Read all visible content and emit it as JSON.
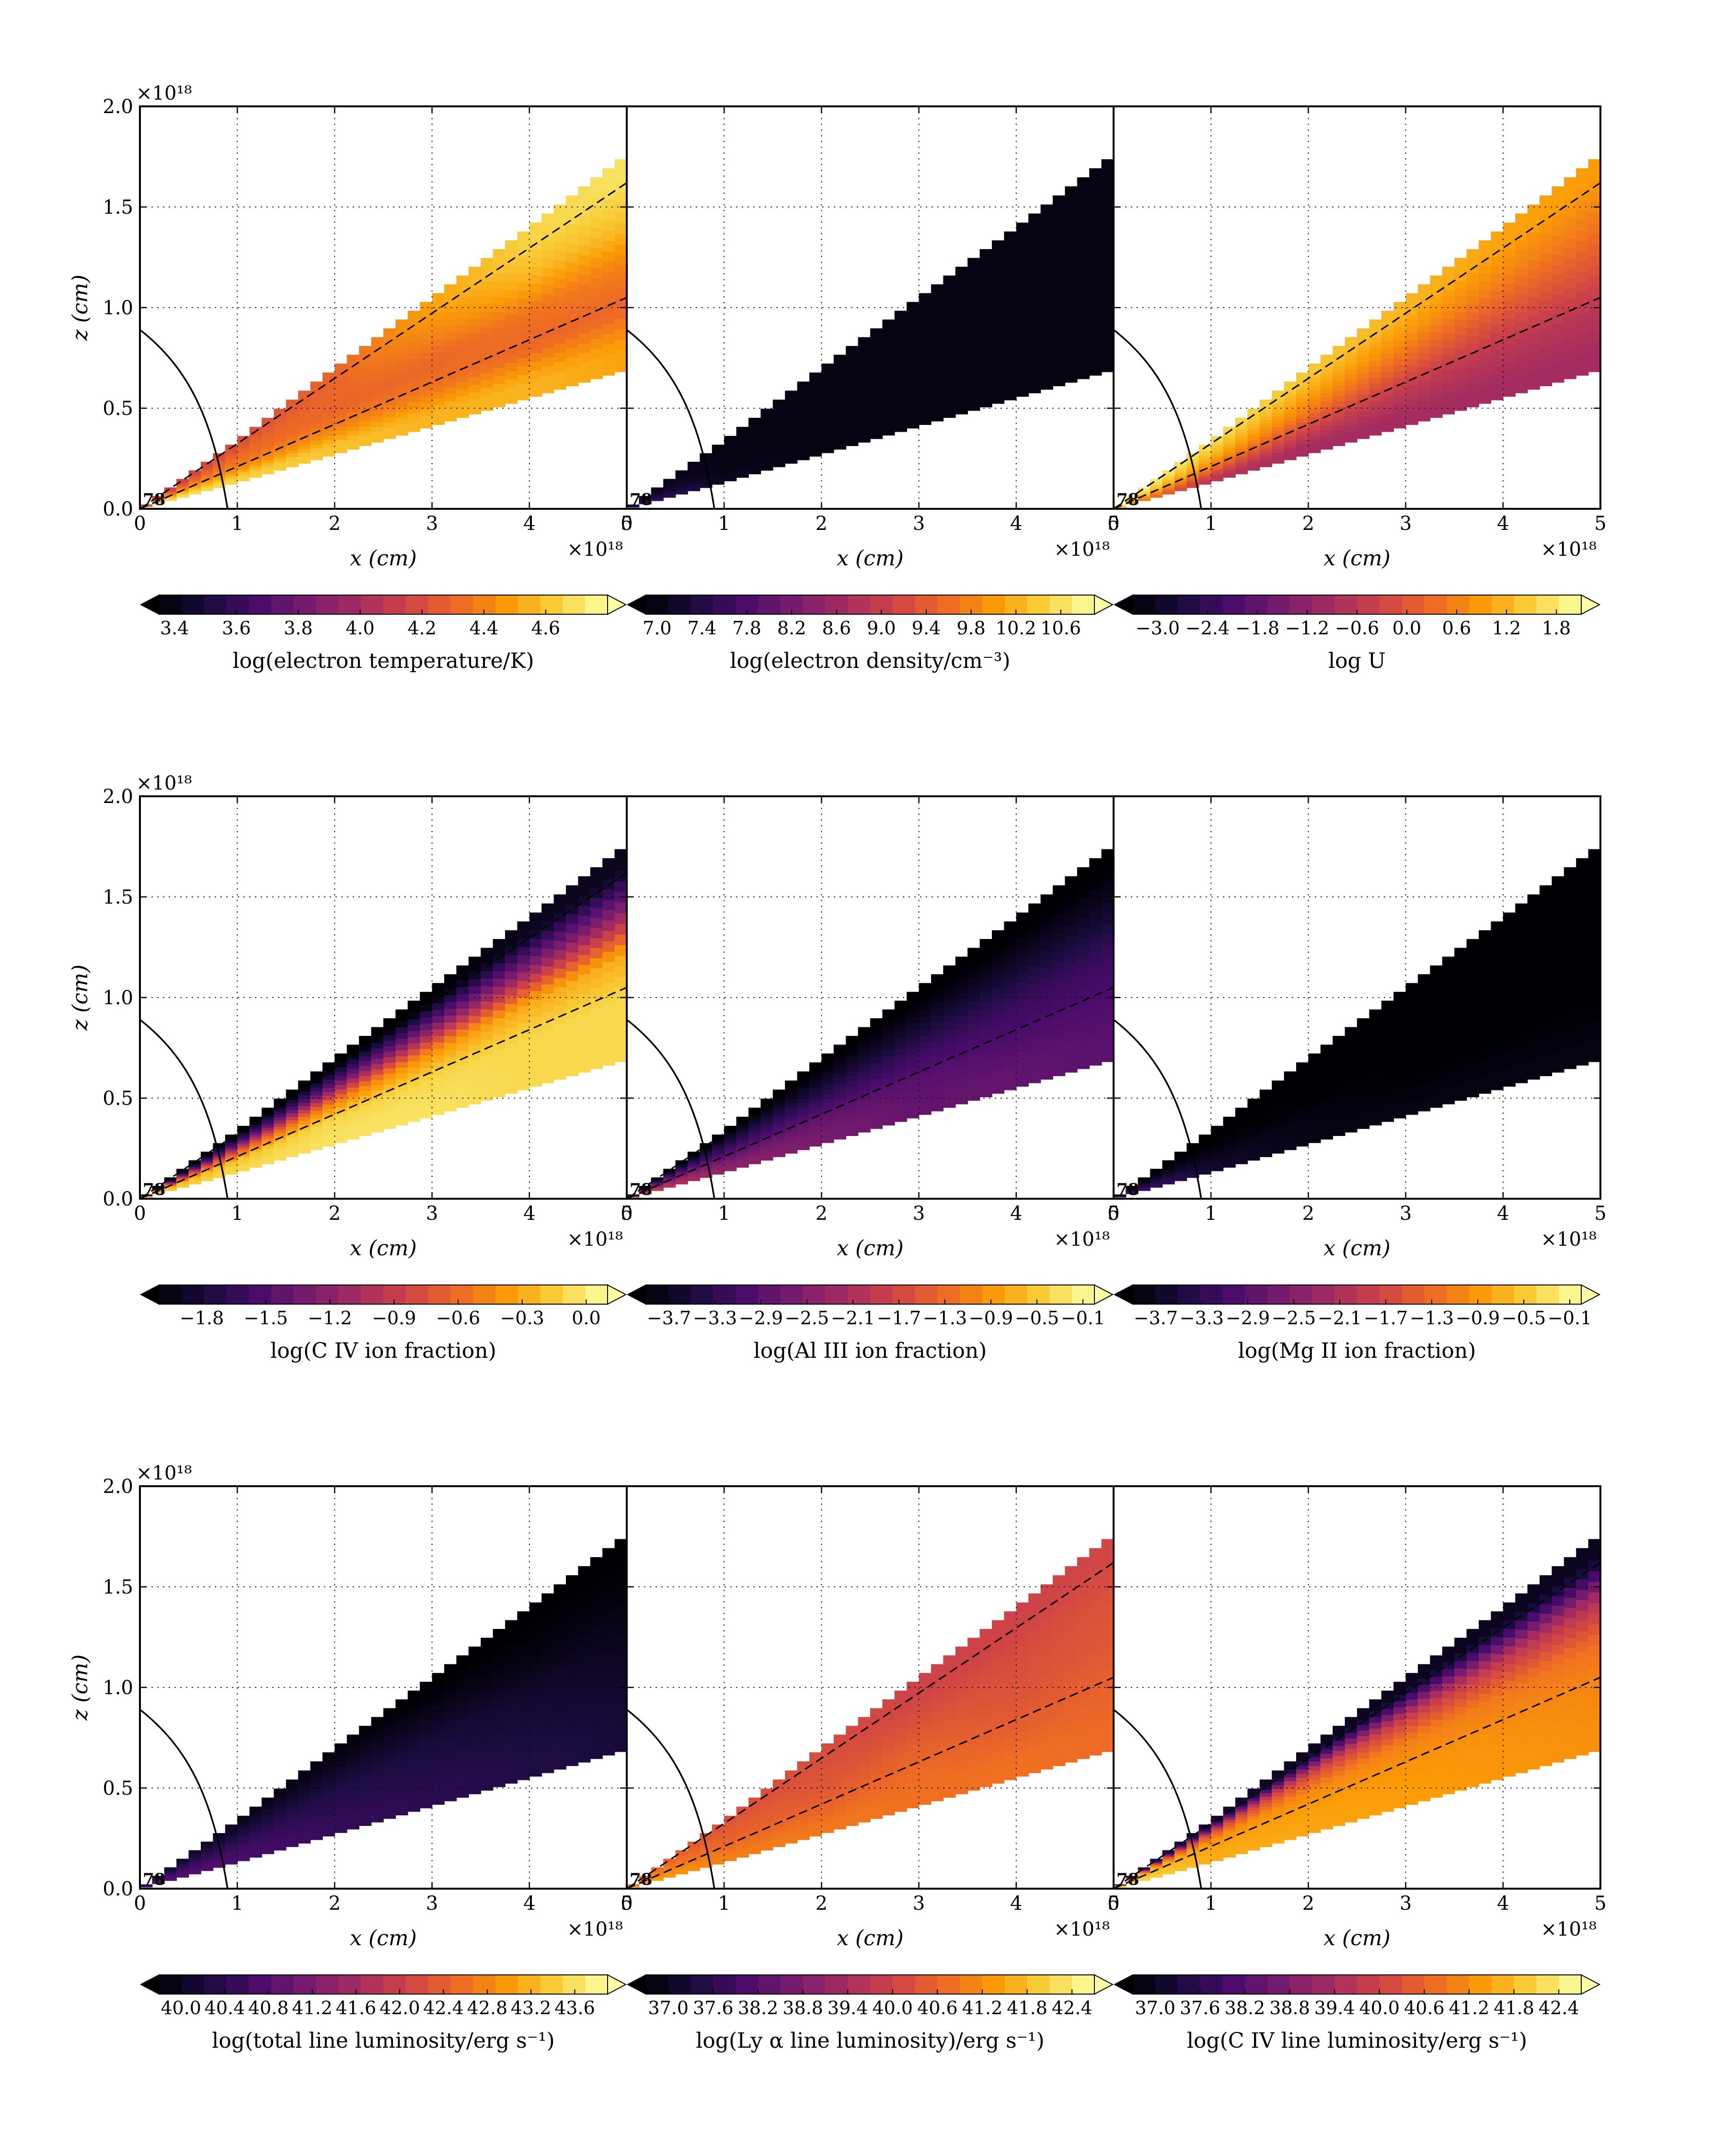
{
  "chart_data": {
    "type": "heatmap",
    "axis_labels": {
      "x": "x (cm)",
      "z": "z (cm)"
    },
    "x_tick_labels": [
      "0",
      "1",
      "2",
      "3",
      "4",
      "5"
    ],
    "z_tick_labels": [
      "0.0",
      "0.5",
      "1.0",
      "1.5",
      "2.0"
    ],
    "scale_label": "×10¹⁸",
    "xlim": [
      0,
      5
    ],
    "ylim": [
      0,
      2
    ],
    "grid": true,
    "colormap": [
      "#000004",
      "#1b0c41",
      "#4a0c6b",
      "#781c6d",
      "#a52c60",
      "#cf4446",
      "#ed6925",
      "#fb9b06",
      "#f7d13d",
      "#fcffa4"
    ],
    "corner_note": "78",
    "wind_wedge": {
      "x": [
        0,
        1,
        2,
        3,
        4,
        5
      ],
      "lower_edge_z": [
        0,
        0.13,
        0.27,
        0.41,
        0.55,
        0.69
      ],
      "upper_edge_z": [
        0,
        0.34,
        0.7,
        1.05,
        1.4,
        1.76
      ]
    },
    "streamlines": {
      "x": [
        0,
        5
      ],
      "steep_z": [
        0,
        1.62
      ],
      "shallow_z": [
        0,
        1.05
      ]
    },
    "boundary_curve": {
      "x": [
        0,
        0.5,
        0.75,
        0.9
      ],
      "z": [
        0.89,
        0.7,
        0.45,
        0
      ]
    },
    "panels": [
      {
        "colorbar_label": "log(electron temperature/K)",
        "colorbar_ticks": [
          "3.4",
          "3.6",
          "3.8",
          "4.0",
          "4.2",
          "4.4",
          "4.6"
        ],
        "cmin": 3.35,
        "cmax": 4.8,
        "has_upper_dash": true,
        "has_lower_dash": true,
        "grid_z": [
          0.1,
          0.3,
          0.5,
          0.7,
          0.9
        ],
        "values": [
          [
            4.7,
            4.65,
            4.6,
            4.55,
            4.55,
            4.5
          ],
          [
            4.6,
            4.45,
            4.4,
            4.35,
            4.3,
            4.3
          ],
          [
            4.4,
            4.35,
            4.3,
            4.3,
            4.35,
            4.4
          ],
          [
            4.2,
            4.3,
            4.3,
            4.4,
            4.55,
            4.6
          ],
          [
            4.1,
            4.2,
            4.3,
            4.5,
            4.65,
            4.7
          ]
        ]
      },
      {
        "colorbar_label": "log(electron density/cm⁻³)",
        "colorbar_ticks": [
          "7.0",
          "7.4",
          "7.8",
          "8.2",
          "8.6",
          "9.0",
          "9.4",
          "9.8",
          "10.2",
          "10.6"
        ],
        "cmin": 6.9,
        "cmax": 10.9,
        "has_upper_dash": false,
        "has_lower_dash": false,
        "grid_z": [
          0.1,
          0.3,
          0.5,
          0.7,
          0.9
        ],
        "values": [
          [
            7.8,
            7.1,
            7.0,
            7.0,
            7.0,
            7.0
          ],
          [
            7.5,
            7.0,
            7.0,
            7.0,
            7.0,
            7.0
          ],
          [
            7.3,
            7.0,
            7.0,
            7.0,
            7.0,
            7.0
          ],
          [
            7.2,
            7.0,
            7.0,
            7.0,
            7.0,
            7.0
          ],
          [
            7.1,
            7.0,
            7.0,
            7.0,
            7.0,
            7.0
          ]
        ]
      },
      {
        "colorbar_label": "log U",
        "colorbar_ticks": [
          "−3.0",
          "−2.4",
          "−1.8",
          "−1.2",
          "−0.6",
          "0.0",
          "0.6",
          "1.2",
          "1.8"
        ],
        "cmin": -3.3,
        "cmax": 2.1,
        "has_upper_dash": true,
        "has_lower_dash": true,
        "grid_z": [
          0.1,
          0.3,
          0.5,
          0.7,
          0.9
        ],
        "values": [
          [
            1.0,
            -0.6,
            -0.9,
            -0.9,
            -0.9,
            -0.9
          ],
          [
            1.3,
            0.2,
            -0.3,
            -0.5,
            -0.6,
            -0.6
          ],
          [
            1.6,
            0.9,
            0.5,
            0.2,
            0.0,
            0.0
          ],
          [
            1.8,
            1.3,
            1.0,
            0.8,
            0.6,
            0.5
          ],
          [
            1.9,
            1.6,
            1.4,
            1.2,
            1.0,
            0.9
          ]
        ]
      },
      {
        "colorbar_label": "log(C IV ion fraction)",
        "colorbar_ticks": [
          "−1.8",
          "−1.5",
          "−1.2",
          "−0.9",
          "−0.6",
          "−0.3",
          "0.0"
        ],
        "cmin": -2.0,
        "cmax": 0.1,
        "has_upper_dash": true,
        "has_lower_dash": true,
        "grid_z": [
          0.1,
          0.3,
          0.5,
          0.7,
          0.9
        ],
        "values": [
          [
            -0.2,
            -0.1,
            -0.05,
            -0.05,
            -0.1,
            -0.1
          ],
          [
            -0.3,
            -0.2,
            -0.1,
            -0.1,
            -0.1,
            -0.1
          ],
          [
            -0.8,
            -0.7,
            -0.5,
            -0.4,
            -0.3,
            -0.3
          ],
          [
            -1.6,
            -1.5,
            -1.4,
            -1.3,
            -1.2,
            -1.2
          ],
          [
            -2.0,
            -2.0,
            -2.0,
            -2.0,
            -1.9,
            -1.9
          ]
        ]
      },
      {
        "colorbar_label": "log(Al III ion fraction)",
        "colorbar_ticks": [
          "−3.7",
          "−3.3",
          "−2.9",
          "−2.5",
          "−2.1",
          "−1.7",
          "−1.3",
          "−0.9",
          "−0.5",
          "−0.1"
        ],
        "cmin": -3.9,
        "cmax": 0.0,
        "has_upper_dash": true,
        "has_lower_dash": true,
        "grid_z": [
          0.1,
          0.3,
          0.5,
          0.7,
          0.9
        ],
        "values": [
          [
            -1.7,
            -2.4,
            -2.6,
            -2.8,
            -2.8,
            -2.9
          ],
          [
            -2.0,
            -2.7,
            -2.8,
            -2.9,
            -3.0,
            -3.0
          ],
          [
            -2.6,
            -3.1,
            -3.2,
            -3.2,
            -3.2,
            -3.2
          ],
          [
            -3.3,
            -3.5,
            -3.6,
            -3.6,
            -3.6,
            -3.6
          ],
          [
            -3.9,
            -3.9,
            -3.9,
            -3.9,
            -3.9,
            -3.9
          ]
        ]
      },
      {
        "colorbar_label": "log(Mg II ion fraction)",
        "colorbar_ticks": [
          "−3.7",
          "−3.3",
          "−2.9",
          "−2.5",
          "−2.1",
          "−1.7",
          "−1.3",
          "−0.9",
          "−0.5",
          "−0.1"
        ],
        "cmin": -3.9,
        "cmax": 0.0,
        "has_upper_dash": false,
        "has_lower_dash": false,
        "grid_z": [
          0.1,
          0.3,
          0.5,
          0.7,
          0.9
        ],
        "values": [
          [
            -2.9,
            -3.6,
            -3.8,
            -3.8,
            -3.8,
            -3.8
          ],
          [
            -3.2,
            -3.7,
            -3.8,
            -3.9,
            -3.9,
            -3.9
          ],
          [
            -3.5,
            -3.8,
            -3.9,
            -3.9,
            -3.9,
            -3.9
          ],
          [
            -3.8,
            -3.9,
            -3.9,
            -3.9,
            -3.9,
            -3.9
          ],
          [
            -3.9,
            -3.9,
            -3.9,
            -3.9,
            -3.9,
            -3.9
          ]
        ]
      },
      {
        "colorbar_label": "log(total line luminosity/erg s⁻¹)",
        "colorbar_ticks": [
          "40.0",
          "40.4",
          "40.8",
          "41.2",
          "41.6",
          "42.0",
          "42.4",
          "42.8",
          "43.2",
          "43.6"
        ],
        "cmin": 39.8,
        "cmax": 43.9,
        "has_upper_dash": false,
        "has_lower_dash": false,
        "grid_z": [
          0.1,
          0.3,
          0.5,
          0.7,
          0.9
        ],
        "values": [
          [
            40.9,
            40.7,
            40.5,
            40.4,
            40.3,
            40.2
          ],
          [
            40.8,
            40.6,
            40.4,
            40.3,
            40.2,
            40.1
          ],
          [
            40.6,
            40.4,
            40.3,
            40.2,
            40.1,
            40.0
          ],
          [
            40.4,
            40.2,
            40.1,
            40.0,
            39.9,
            39.9
          ],
          [
            40.2,
            40.0,
            39.9,
            39.8,
            39.8,
            39.8
          ]
        ]
      },
      {
        "colorbar_label": "log(Ly α line luminosity)/erg s⁻¹)",
        "colorbar_ticks": [
          "37.0",
          "37.6",
          "38.2",
          "38.8",
          "39.4",
          "40.0",
          "40.6",
          "41.2",
          "41.8",
          "42.4"
        ],
        "cmin": 36.7,
        "cmax": 42.7,
        "has_upper_dash": true,
        "has_lower_dash": true,
        "grid_z": [
          0.1,
          0.3,
          0.5,
          0.7,
          0.9
        ],
        "values": [
          [
            41.6,
            41.0,
            40.9,
            40.8,
            40.8,
            40.7
          ],
          [
            41.4,
            40.8,
            40.6,
            40.7,
            40.5,
            40.6
          ],
          [
            41.2,
            40.6,
            40.4,
            40.5,
            40.3,
            40.4
          ],
          [
            41.0,
            40.5,
            40.3,
            40.2,
            40.2,
            40.3
          ],
          [
            40.8,
            40.3,
            40.2,
            40.0,
            40.0,
            40.1
          ]
        ]
      },
      {
        "colorbar_label": "log(C IV line luminosity/erg s⁻¹)",
        "colorbar_ticks": [
          "37.0",
          "37.6",
          "38.2",
          "38.8",
          "39.4",
          "40.0",
          "40.6",
          "41.2",
          "41.8",
          "42.4"
        ],
        "cmin": 36.7,
        "cmax": 42.7,
        "has_upper_dash": true,
        "has_lower_dash": true,
        "grid_z": [
          0.1,
          0.3,
          0.5,
          0.7,
          0.9
        ],
        "values": [
          [
            42.3,
            41.6,
            41.5,
            41.4,
            41.3,
            41.2
          ],
          [
            42.1,
            41.5,
            41.4,
            41.3,
            41.2,
            41.1
          ],
          [
            41.9,
            41.3,
            41.1,
            41.0,
            40.9,
            40.8
          ],
          [
            40.5,
            40.2,
            40.0,
            39.8,
            39.7,
            39.6
          ],
          [
            37.5,
            37.2,
            37.0,
            37.0,
            37.0,
            37.0
          ]
        ]
      }
    ]
  }
}
